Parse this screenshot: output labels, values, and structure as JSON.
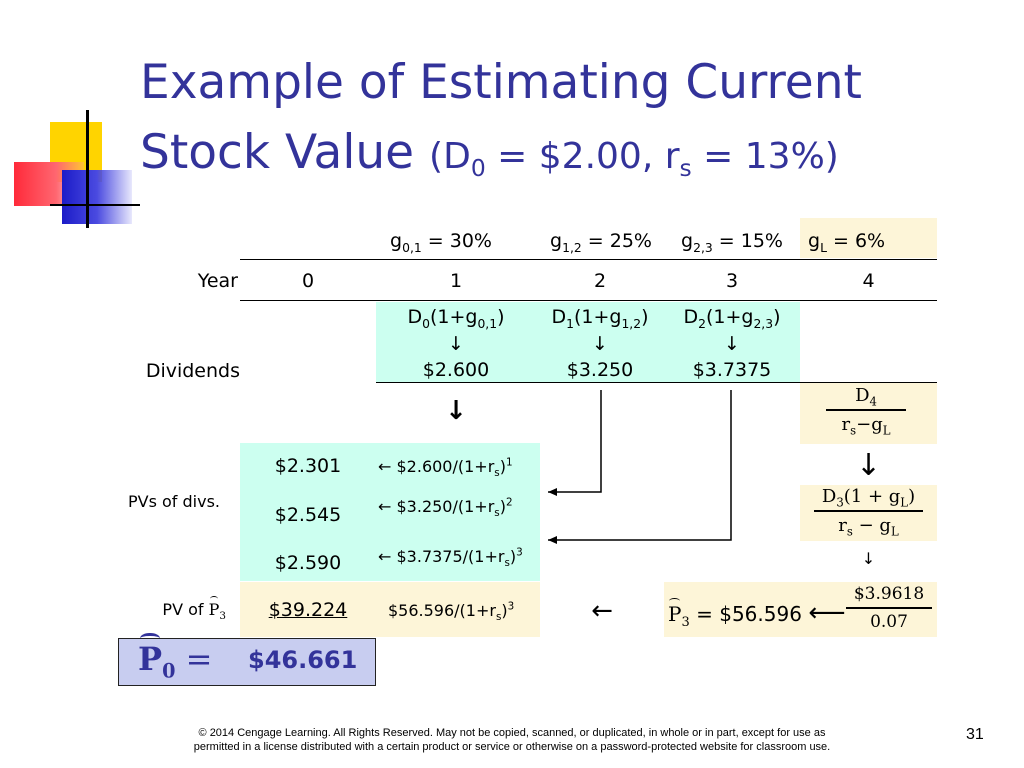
{
  "title": {
    "line1": "Example of Estimating Current",
    "line2_main": "Stock Value",
    "paren_open": "(D",
    "d_sub": "0",
    "eq_mid": " = $2.00, r",
    "r_sub": "s",
    "eq_end": " = 13%)"
  },
  "growth": {
    "g01": {
      "sym": "g",
      "sub": "0,1",
      "val": " = 30%"
    },
    "g12": {
      "sym": "g",
      "sub": "1,2",
      "val": " = 25%"
    },
    "g23": {
      "sym": "g",
      "sub": "2,3",
      "val": " = 15%"
    },
    "gL": {
      "sym": "g",
      "sub": "L",
      "val": " = 6%"
    }
  },
  "years": {
    "label": "Year",
    "values": [
      "0",
      "1",
      "2",
      "3",
      "4"
    ]
  },
  "dividends": {
    "label": "Dividends",
    "formulas": [
      {
        "d": "D",
        "dsub": "0",
        "mid": "(1+g",
        "gsub": "0,1",
        "end": ")"
      },
      {
        "d": "D",
        "dsub": "1",
        "mid": "(1+g",
        "gsub": "1,2",
        "end": ")"
      },
      {
        "d": "D",
        "dsub": "2",
        "mid": "(1+g",
        "gsub": "2,3",
        "end": ")"
      }
    ],
    "values": [
      "$2.600",
      "$3.250",
      "$3.7375"
    ]
  },
  "arrows": {
    "down": "↓",
    "left": "←",
    "long_left": "⟵"
  },
  "terminal_formula": {
    "num": "D",
    "num_sub": "4",
    "den_r": "r",
    "den_r_sub": "s",
    "den_mid": "−g",
    "den_g_sub": "L"
  },
  "terminal_formula2": {
    "num_d": "D",
    "num_d_sub": "3",
    "num_rest": "(1 + g",
    "num_g_sub": "L",
    "num_end": ")",
    "den_r": "r",
    "den_r_sub": "s",
    "den_mid": " − g",
    "den_g_sub": "L"
  },
  "pvs": {
    "label": "PVs of divs.",
    "values": [
      "$2.301",
      "$2.545",
      "$2.590"
    ],
    "notes": [
      {
        "pre": "← $2.600/(1+r",
        "sub": "s",
        "mid": ")",
        "exp": "1"
      },
      {
        "pre": "← $3.250/(1+r",
        "sub": "s",
        "mid": ")",
        "exp": "2"
      },
      {
        "pre": "← $3.7375/(1+r",
        "sub": "s",
        "mid": ")",
        "exp": "3"
      }
    ]
  },
  "pv_p3": {
    "label_pre": "PV of ",
    "p": "P",
    "p_sub": "3",
    "value": "$39.224",
    "note_pre": "$56.596/(1+r",
    "note_sub": "s",
    "note_mid": ")",
    "note_exp": "3",
    "p3_eq": " = $56.596 ",
    "frac_num": "$3.9618",
    "frac_den": "0.07"
  },
  "p0": {
    "p": "P",
    "p_sub": "0",
    "eq": " = ",
    "value": "$46.661"
  },
  "footer": {
    "copyright_1": "© 2014 Cengage Learning. All Rights Reserved. May not be copied, scanned, or duplicated, in whole or in part, except for use as",
    "copyright_2": "permitted in a license distributed with a certain product or service or otherwise on a password-protected website for classroom use.",
    "page": "31"
  },
  "colors": {
    "title": "#33339a",
    "cyan": "#ccfff0",
    "yellow": "#fdf5d8",
    "p0_box": "#c8cdf0",
    "deco_yellow": "#ffd700",
    "deco_red": "#ff3344",
    "deco_blue": "#2222cc"
  }
}
